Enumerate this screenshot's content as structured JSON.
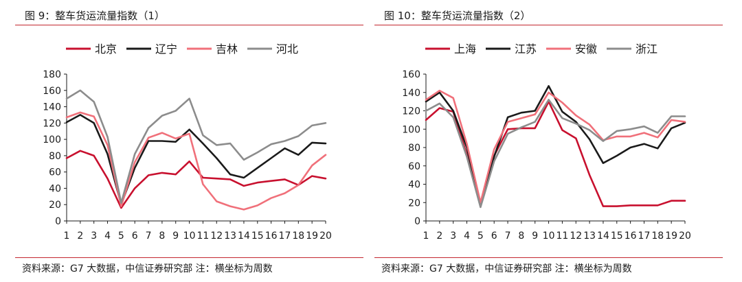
{
  "charts": [
    {
      "title": "图 9：整车货运流量指数（1）",
      "source": "资料来源：G7 大数据，中信证券研究部  注：横坐标为周数"
    },
    {
      "title": "图 10：整车货运流量指数（2）",
      "source": "资料来源：G7 大数据，中信证券研究部    注：横坐标为周数"
    }
  ],
  "chart_data": [
    {
      "type": "line",
      "title": "图 9：整车货运流量指数（1）",
      "x": [
        1,
        2,
        3,
        4,
        5,
        6,
        7,
        8,
        9,
        10,
        11,
        12,
        13,
        14,
        15,
        16,
        17,
        18,
        19,
        20
      ],
      "ylim": [
        0,
        180
      ],
      "yticks": [
        0,
        20,
        40,
        60,
        80,
        100,
        120,
        140,
        160,
        180
      ],
      "grid": false,
      "legend_position": "top",
      "series": [
        {
          "name": "北京",
          "color": "#c8102e",
          "values": [
            77,
            86,
            80,
            52,
            16,
            40,
            56,
            59,
            57,
            73,
            53,
            52,
            51,
            43,
            47,
            49,
            51,
            44,
            55,
            52
          ]
        },
        {
          "name": "辽宁",
          "color": "#1a1a1a",
          "values": [
            121,
            130,
            120,
            82,
            20,
            65,
            98,
            98,
            97,
            112,
            95,
            77,
            57,
            53,
            65,
            77,
            89,
            81,
            96,
            95
          ]
        },
        {
          "name": "吉林",
          "color": "#f0707a",
          "values": [
            127,
            133,
            128,
            93,
            18,
            72,
            102,
            108,
            101,
            107,
            45,
            24,
            18,
            14,
            19,
            28,
            34,
            44,
            68,
            81
          ]
        },
        {
          "name": "河北",
          "color": "#8c8c8c",
          "values": [
            150,
            160,
            146,
            103,
            22,
            82,
            114,
            129,
            135,
            150,
            105,
            93,
            95,
            75,
            84,
            94,
            98,
            104,
            117,
            120
          ]
        }
      ]
    },
    {
      "type": "line",
      "title": "图 10：整车货运流量指数（2）",
      "x": [
        1,
        2,
        3,
        4,
        5,
        6,
        7,
        8,
        9,
        10,
        11,
        12,
        13,
        14,
        15,
        16,
        17,
        18,
        19,
        20
      ],
      "ylim": [
        0,
        160
      ],
      "yticks": [
        0,
        20,
        40,
        60,
        80,
        100,
        120,
        140,
        160
      ],
      "grid": false,
      "legend_position": "top",
      "series": [
        {
          "name": "上海",
          "color": "#c8102e",
          "values": [
            110,
            123,
            119,
            72,
            20,
            71,
            100,
            101,
            101,
            130,
            99,
            90,
            50,
            16,
            16,
            17,
            17,
            17,
            22,
            22
          ]
        },
        {
          "name": "江苏",
          "color": "#1a1a1a",
          "values": [
            130,
            140,
            120,
            80,
            17,
            70,
            113,
            118,
            120,
            147,
            119,
            108,
            89,
            63,
            71,
            80,
            84,
            79,
            101,
            107
          ]
        },
        {
          "name": "安徽",
          "color": "#f0707a",
          "values": [
            132,
            142,
            134,
            84,
            20,
            78,
            108,
            112,
            116,
            140,
            129,
            115,
            105,
            88,
            92,
            92,
            96,
            91,
            110,
            108
          ]
        },
        {
          "name": "浙江",
          "color": "#8c8c8c",
          "values": [
            120,
            128,
            113,
            70,
            15,
            65,
            95,
            102,
            108,
            132,
            112,
            106,
            99,
            87,
            98,
            100,
            103,
            96,
            114,
            114
          ]
        }
      ]
    }
  ]
}
